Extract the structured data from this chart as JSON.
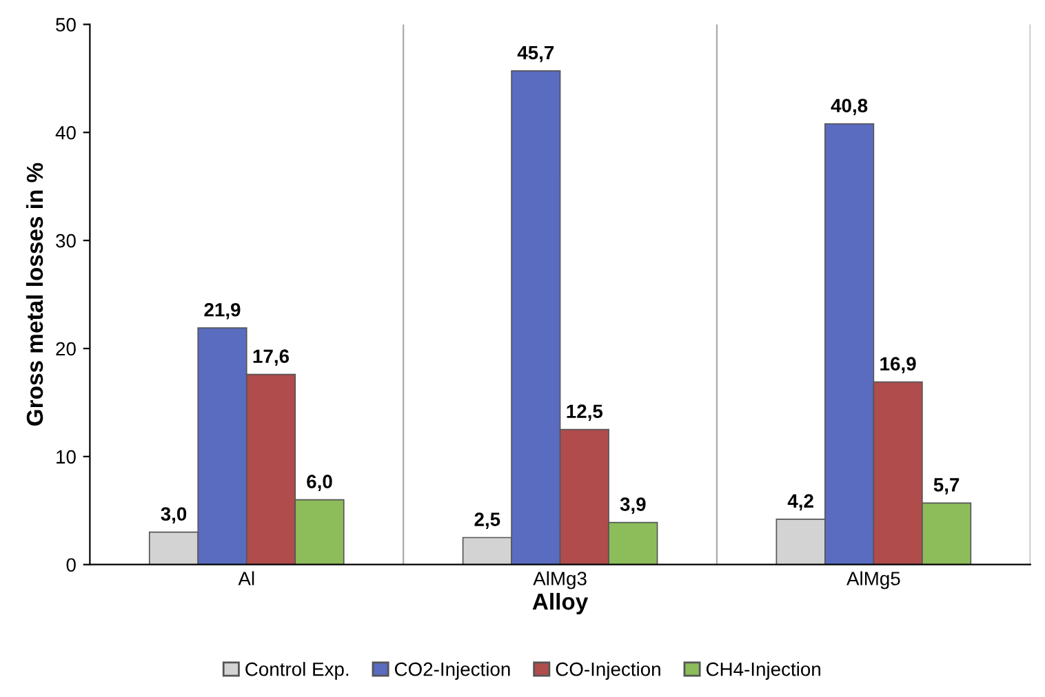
{
  "chart_data": {
    "type": "bar",
    "xlabel": "Alloy",
    "ylabel": "Gross metal losses in %",
    "categories": [
      "Al",
      "AlMg3",
      "AlMg5"
    ],
    "series": [
      {
        "name": "Control Exp.",
        "color": "#d3d3d3",
        "values": [
          3.0,
          2.5,
          4.2
        ],
        "value_labels": [
          "3,0",
          "2,5",
          "4,2"
        ]
      },
      {
        "name": "CO2-Injection",
        "color": "#5a6cc0",
        "values": [
          21.9,
          45.7,
          40.8
        ],
        "value_labels": [
          "21,9",
          "45,7",
          "40,8"
        ]
      },
      {
        "name": "CO-Injection",
        "color": "#b04c4c",
        "values": [
          17.6,
          12.5,
          16.9
        ],
        "value_labels": [
          "17,6",
          "12,5",
          "16,9"
        ]
      },
      {
        "name": "CH4-Injection",
        "color": "#8dbd5a",
        "values": [
          6.0,
          3.9,
          5.7
        ],
        "value_labels": [
          "6,0",
          "3,9",
          "5,7"
        ]
      }
    ],
    "ylim": [
      0,
      50
    ],
    "yticks": [
      0,
      10,
      20,
      30,
      40,
      50
    ],
    "grid": "x",
    "legend": "bottom"
  }
}
